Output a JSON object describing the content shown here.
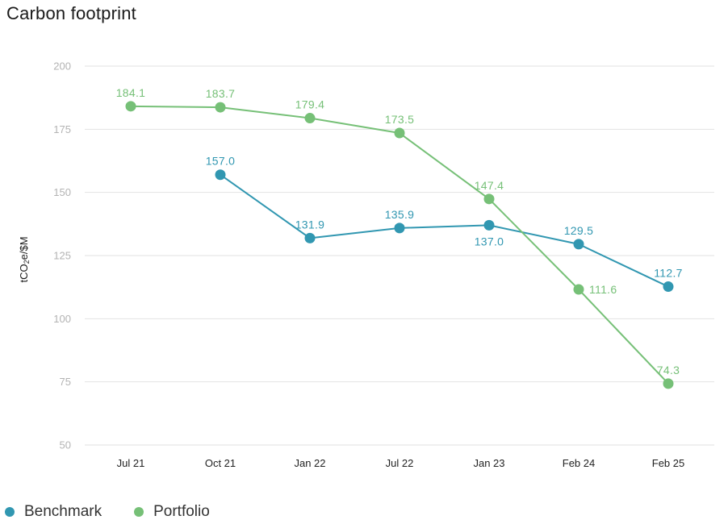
{
  "colors": {
    "benchmark": "#3197b1",
    "portfolio": "#76c077",
    "grid": "#e2e2e2"
  },
  "chart_data": {
    "type": "line",
    "title": "Carbon footprint",
    "ylabel": {
      "prefix": "tCO",
      "subscript": "2",
      "suffix": "e/$M"
    },
    "xlabel": "",
    "categories": [
      "Jul 21",
      "Oct 21",
      "Jan 22",
      "Jul 22",
      "Jan 23",
      "Feb 24",
      "Feb 25"
    ],
    "ylim": [
      50,
      200
    ],
    "yticks": [
      50,
      75,
      100,
      125,
      150,
      175,
      200
    ],
    "grid": true,
    "legend_position": "bottom-left",
    "series": [
      {
        "name": "Benchmark",
        "color": "#3197b1",
        "values": [
          null,
          157.0,
          131.9,
          135.9,
          137.0,
          129.5,
          112.7
        ],
        "labels": [
          "",
          "157.0",
          "131.9",
          "135.9",
          "137.0",
          "129.5",
          "112.7"
        ],
        "label_positions": [
          "above",
          "above",
          "above",
          "above",
          "below",
          "above",
          "above"
        ]
      },
      {
        "name": "Portfolio",
        "color": "#76c077",
        "values": [
          184.1,
          183.7,
          179.4,
          173.5,
          147.4,
          111.6,
          74.3
        ],
        "labels": [
          "184.1",
          "183.7",
          "179.4",
          "173.5",
          "147.4",
          "111.6",
          "74.3"
        ],
        "label_positions": [
          "above",
          "above",
          "above",
          "above",
          "above",
          "right",
          "above"
        ]
      }
    ]
  }
}
